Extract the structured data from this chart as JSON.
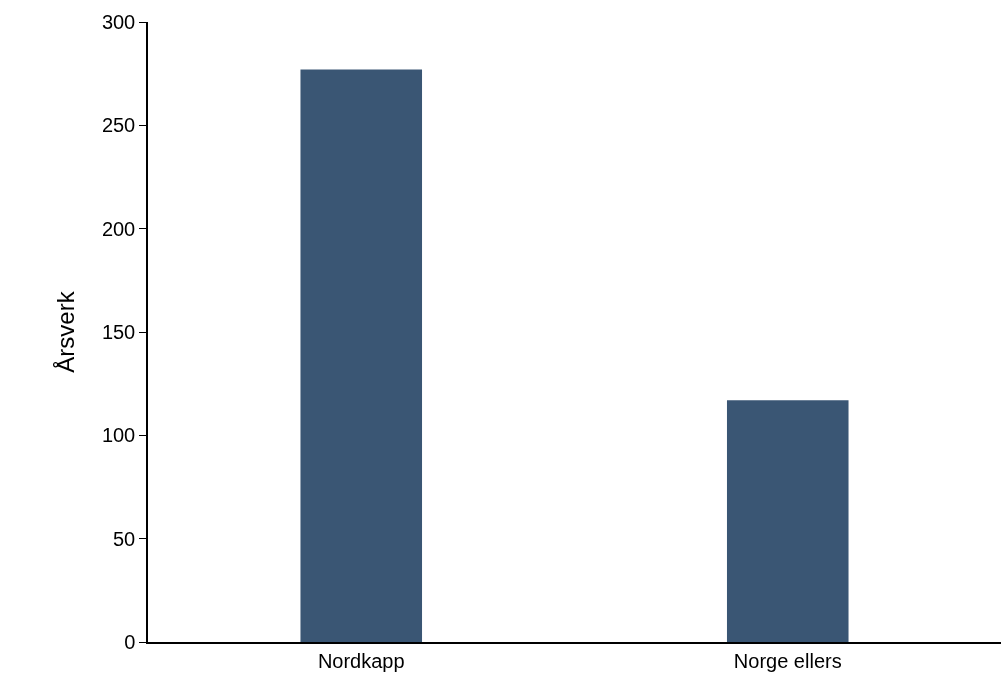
{
  "chart_data": {
    "type": "bar",
    "ylabel": "Årsverk",
    "categories": [
      "Nordkapp",
      "Norge ellers"
    ],
    "values": [
      277,
      117
    ],
    "color": "#3a5674",
    "ylim": [
      0,
      300
    ],
    "yticks": [
      0,
      50,
      100,
      150,
      200,
      250,
      300
    ]
  }
}
